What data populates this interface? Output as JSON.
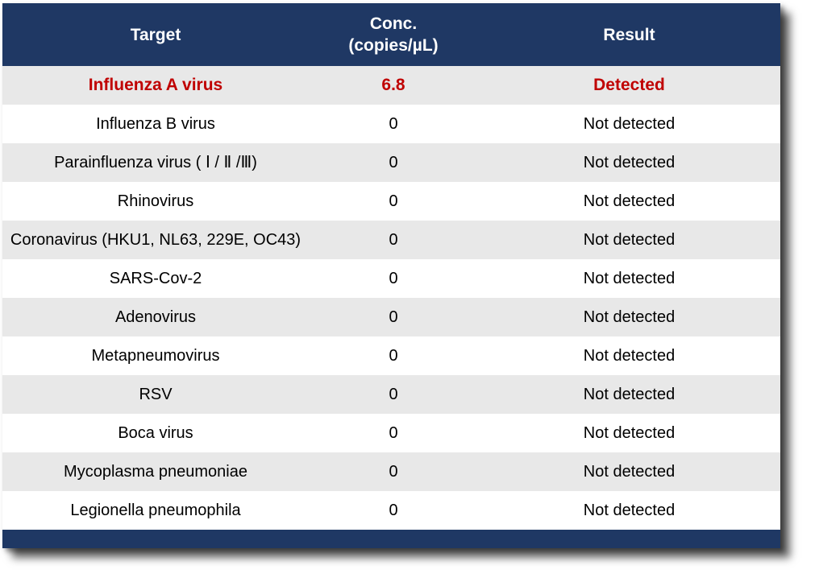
{
  "colors": {
    "header_bg": "#1F3864",
    "header_text": "#FFFFFF",
    "highlight_text": "#C00000",
    "row_alt_bg": "#E8E8E8",
    "row_bg": "#FFFFFF",
    "body_text": "#000000"
  },
  "chart_data": {
    "type": "table",
    "columns": [
      "Target",
      "Conc. (copies/µL)",
      "Result"
    ],
    "header_lines": {
      "conc_line1": "Conc.",
      "conc_line2": "(copies/µL)"
    },
    "highlight_row": 0,
    "rows": [
      {
        "target": "Influenza A virus",
        "conc": "6.8",
        "result": "Detected"
      },
      {
        "target": "Influenza B virus",
        "conc": "0",
        "result": "Not detected"
      },
      {
        "target": "Parainfluenza virus ( Ⅰ / Ⅱ /Ⅲ)",
        "conc": "0",
        "result": "Not detected"
      },
      {
        "target": "Rhinovirus",
        "conc": "0",
        "result": "Not detected"
      },
      {
        "target": "Coronavirus (HKU1, NL63, 229E, OC43)",
        "conc": "0",
        "result": "Not detected"
      },
      {
        "target": "SARS-Cov-2",
        "conc": "0",
        "result": "Not detected"
      },
      {
        "target": "Adenovirus",
        "conc": "0",
        "result": "Not detected"
      },
      {
        "target": "Metapneumovirus",
        "conc": "0",
        "result": "Not detected"
      },
      {
        "target": "RSV",
        "conc": "0",
        "result": "Not detected"
      },
      {
        "target": "Boca virus",
        "conc": "0",
        "result": "Not detected"
      },
      {
        "target": "Mycoplasma pneumoniae",
        "conc": "0",
        "result": "Not detected"
      },
      {
        "target": "Legionella pneumophila",
        "conc": "0",
        "result": "Not detected"
      }
    ]
  }
}
